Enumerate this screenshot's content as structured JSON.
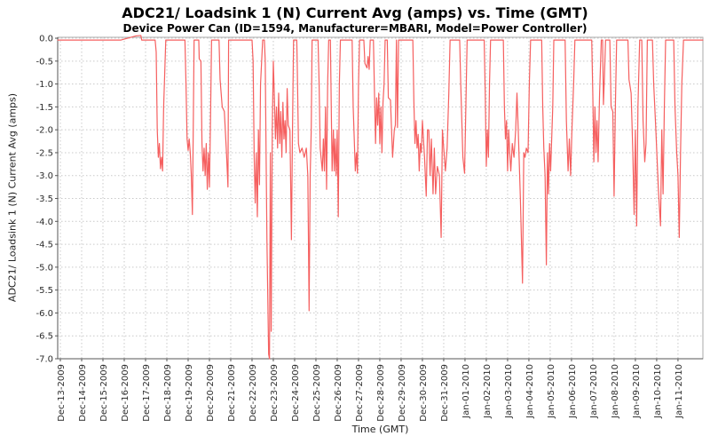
{
  "header": {
    "title": "ADC21/ Loadsink 1 (N) Current Avg (amps) vs. Time (GMT)",
    "subtitle": "Device Power Can (ID=1594, Manufacturer=MBARI, Model=Power Controller)"
  },
  "colors": {
    "series": "#f55f5f",
    "grid": "#c9c9c9",
    "plot_border": "#aaaaaa",
    "axis_line": "#555555",
    "tick_label": "#2b2b2b",
    "background": "#ffffff"
  },
  "chart_data": {
    "type": "line",
    "title": "ADC21/ Loadsink 1 (N) Current Avg (amps) vs. Time (GMT)",
    "subtitle": "Device Power Can (ID=1594, Manufacturer=MBARI, Model=Power Controller)",
    "xlabel": "Time (GMT)",
    "ylabel": "ADC21/ Loadsink 1 (N) Current Avg (amps)",
    "legend": "none",
    "grid": true,
    "grid_style": "dotted",
    "x_tick_labels": [
      "Dec-13-2009",
      "Dec-14-2009",
      "Dec-15-2009",
      "Dec-16-2009",
      "Dec-17-2009",
      "Dec-18-2009",
      "Dec-19-2009",
      "Dec-20-2009",
      "Dec-21-2009",
      "Dec-22-2009",
      "Dec-23-2009",
      "Dec-24-2009",
      "Dec-25-2009",
      "Dec-26-2009",
      "Dec-27-2009",
      "Dec-28-2009",
      "Dec-29-2009",
      "Dec-30-2009",
      "Dec-31-2009",
      "Jan-01-2010",
      "Jan-02-2010",
      "Jan-03-2010",
      "Jan-04-2010",
      "Jan-05-2010",
      "Jan-06-2010",
      "Jan-07-2010",
      "Jan-08-2010",
      "Jan-09-2010",
      "Jan-10-2010",
      "Jan-11-2010"
    ],
    "y_ticks": [
      0.0,
      -0.5,
      -1.0,
      -1.5,
      -2.0,
      -2.5,
      -3.0,
      -3.5,
      -4.0,
      -4.5,
      -5.0,
      -5.5,
      -6.0,
      -6.5,
      -7.0
    ],
    "ylim": [
      -7.0,
      0.02
    ],
    "x_range_days": [
      -0.125,
      30.17
    ],
    "x_unit": "days since Dec-13-2009 00:00 GMT",
    "series": [
      {
        "name": "ADC21/ Loadsink 1 (N) Current Avg",
        "color": "#f55f5f",
        "points": [
          [
            -0.12,
            -0.04
          ],
          [
            2.85,
            -0.04
          ],
          [
            3.0,
            -0.02
          ],
          [
            3.55,
            0.05
          ],
          [
            3.78,
            0.06
          ],
          [
            3.82,
            -0.04
          ],
          [
            4.45,
            -0.04
          ],
          [
            4.5,
            -0.3
          ],
          [
            4.55,
            -2.0
          ],
          [
            4.6,
            -2.6
          ],
          [
            4.65,
            -2.3
          ],
          [
            4.7,
            -2.85
          ],
          [
            4.75,
            -2.6
          ],
          [
            4.8,
            -2.9
          ],
          [
            4.85,
            -1.5
          ],
          [
            4.95,
            -0.04
          ],
          [
            5.85,
            -0.04
          ],
          [
            5.9,
            -1.0
          ],
          [
            5.95,
            -2.2
          ],
          [
            6.0,
            -2.45
          ],
          [
            6.05,
            -2.2
          ],
          [
            6.1,
            -2.5
          ],
          [
            6.15,
            -3.0
          ],
          [
            6.2,
            -3.85
          ],
          [
            6.24,
            -2.0
          ],
          [
            6.28,
            -0.04
          ],
          [
            6.5,
            -0.04
          ],
          [
            6.52,
            -0.45
          ],
          [
            6.6,
            -0.5
          ],
          [
            6.65,
            -2.3
          ],
          [
            6.7,
            -2.9
          ],
          [
            6.75,
            -2.4
          ],
          [
            6.8,
            -3.0
          ],
          [
            6.85,
            -2.3
          ],
          [
            6.9,
            -3.3
          ],
          [
            6.95,
            -2.5
          ],
          [
            7.0,
            -3.25
          ],
          [
            7.05,
            -1.8
          ],
          [
            7.1,
            -0.04
          ],
          [
            7.45,
            -0.04
          ],
          [
            7.5,
            -0.9
          ],
          [
            7.6,
            -1.5
          ],
          [
            7.7,
            -1.6
          ],
          [
            7.8,
            -2.5
          ],
          [
            7.87,
            -3.25
          ],
          [
            7.9,
            -0.04
          ],
          [
            9.0,
            -0.04
          ],
          [
            9.05,
            -0.5
          ],
          [
            9.1,
            -2.55
          ],
          [
            9.15,
            -3.6
          ],
          [
            9.2,
            -2.5
          ],
          [
            9.25,
            -3.9
          ],
          [
            9.3,
            -2.0
          ],
          [
            9.35,
            -3.2
          ],
          [
            9.4,
            -1.0
          ],
          [
            9.5,
            -0.04
          ],
          [
            9.58,
            -0.04
          ],
          [
            9.62,
            -0.5
          ],
          [
            9.66,
            -2.5
          ],
          [
            9.7,
            -4.4
          ],
          [
            9.78,
            -6.9
          ],
          [
            9.82,
            -7.0
          ],
          [
            9.86,
            -2.5
          ],
          [
            9.9,
            -6.4
          ],
          [
            9.95,
            -2.0
          ],
          [
            10.0,
            -0.5
          ],
          [
            10.05,
            -1.3
          ],
          [
            10.1,
            -2.2
          ],
          [
            10.15,
            -1.5
          ],
          [
            10.2,
            -2.4
          ],
          [
            10.25,
            -1.2
          ],
          [
            10.3,
            -2.3
          ],
          [
            10.35,
            -1.6
          ],
          [
            10.4,
            -2.6
          ],
          [
            10.45,
            -1.4
          ],
          [
            10.5,
            -2.2
          ],
          [
            10.55,
            -1.8
          ],
          [
            10.6,
            -2.5
          ],
          [
            10.65,
            -1.1
          ],
          [
            10.7,
            -1.9
          ],
          [
            10.78,
            -2.0
          ],
          [
            10.85,
            -4.4
          ],
          [
            10.9,
            -2.0
          ],
          [
            10.95,
            -0.04
          ],
          [
            11.1,
            -0.04
          ],
          [
            11.12,
            -0.5
          ],
          [
            11.18,
            -2.3
          ],
          [
            11.25,
            -2.5
          ],
          [
            11.35,
            -2.4
          ],
          [
            11.45,
            -2.6
          ],
          [
            11.55,
            -2.4
          ],
          [
            11.62,
            -3.0
          ],
          [
            11.68,
            -5.95
          ],
          [
            11.73,
            -3.0
          ],
          [
            11.78,
            -2.0
          ],
          [
            11.82,
            -0.04
          ],
          [
            12.1,
            -0.04
          ],
          [
            12.15,
            -1.0
          ],
          [
            12.2,
            -2.4
          ],
          [
            12.3,
            -2.9
          ],
          [
            12.35,
            -2.2
          ],
          [
            12.4,
            -2.9
          ],
          [
            12.45,
            -1.5
          ],
          [
            12.5,
            -3.3
          ],
          [
            12.55,
            -1.0
          ],
          [
            12.6,
            -0.04
          ],
          [
            12.68,
            -0.04
          ],
          [
            12.72,
            -1.5
          ],
          [
            12.76,
            -2.9
          ],
          [
            12.82,
            -2.0
          ],
          [
            12.86,
            -2.9
          ],
          [
            12.9,
            -2.2
          ],
          [
            12.95,
            -3.0
          ],
          [
            13.0,
            -2.0
          ],
          [
            13.05,
            -3.9
          ],
          [
            13.1,
            -1.0
          ],
          [
            13.15,
            -0.04
          ],
          [
            13.7,
            -0.04
          ],
          [
            13.75,
            -1.5
          ],
          [
            13.85,
            -2.9
          ],
          [
            13.9,
            -2.5
          ],
          [
            13.95,
            -2.95
          ],
          [
            14.0,
            -1.0
          ],
          [
            14.05,
            -0.04
          ],
          [
            14.25,
            -0.04
          ],
          [
            14.3,
            -0.55
          ],
          [
            14.4,
            -0.65
          ],
          [
            14.45,
            -0.4
          ],
          [
            14.5,
            -0.68
          ],
          [
            14.55,
            -0.04
          ],
          [
            14.7,
            -0.04
          ],
          [
            14.75,
            -1.2
          ],
          [
            14.8,
            -2.3
          ],
          [
            14.85,
            -1.3
          ],
          [
            14.9,
            -1.9
          ],
          [
            14.95,
            -1.2
          ],
          [
            15.0,
            -2.3
          ],
          [
            15.05,
            -1.5
          ],
          [
            15.1,
            -2.5
          ],
          [
            15.15,
            -1.4
          ],
          [
            15.2,
            -1.0
          ],
          [
            15.25,
            -0.04
          ],
          [
            15.35,
            -0.04
          ],
          [
            15.4,
            -1.3
          ],
          [
            15.5,
            -1.35
          ],
          [
            15.6,
            -2.6
          ],
          [
            15.68,
            -2.0
          ],
          [
            15.73,
            -1.9
          ],
          [
            15.78,
            -0.04
          ],
          [
            15.83,
            -1.95
          ],
          [
            15.88,
            -0.04
          ],
          [
            16.55,
            -0.04
          ],
          [
            16.6,
            -1.4
          ],
          [
            16.65,
            -2.3
          ],
          [
            16.7,
            -1.8
          ],
          [
            16.75,
            -2.4
          ],
          [
            16.8,
            -2.1
          ],
          [
            16.85,
            -2.9
          ],
          [
            16.9,
            -2.3
          ],
          [
            16.95,
            -2.5
          ],
          [
            17.0,
            -1.8
          ],
          [
            17.05,
            -2.2
          ],
          [
            17.1,
            -2.6
          ],
          [
            17.18,
            -3.45
          ],
          [
            17.24,
            -2.0
          ],
          [
            17.3,
            -2.0
          ],
          [
            17.36,
            -3.0
          ],
          [
            17.42,
            -2.2
          ],
          [
            17.5,
            -3.4
          ],
          [
            17.56,
            -2.4
          ],
          [
            17.62,
            -3.4
          ],
          [
            17.7,
            -2.8
          ],
          [
            17.8,
            -3.0
          ],
          [
            17.88,
            -4.35
          ],
          [
            17.94,
            -2.0
          ],
          [
            18.0,
            -2.4
          ],
          [
            18.08,
            -2.9
          ],
          [
            18.16,
            -2.4
          ],
          [
            18.24,
            -1.2
          ],
          [
            18.3,
            -0.04
          ],
          [
            18.75,
            -0.04
          ],
          [
            18.8,
            -1.0
          ],
          [
            18.9,
            -2.6
          ],
          [
            18.98,
            -2.95
          ],
          [
            19.04,
            -1.5
          ],
          [
            19.1,
            -0.04
          ],
          [
            19.9,
            -0.04
          ],
          [
            19.95,
            -1.2
          ],
          [
            20.0,
            -2.8
          ],
          [
            20.05,
            -2.0
          ],
          [
            20.1,
            -2.6
          ],
          [
            20.15,
            -1.0
          ],
          [
            20.2,
            -0.04
          ],
          [
            20.8,
            -0.04
          ],
          [
            20.85,
            -1.5
          ],
          [
            20.9,
            -2.2
          ],
          [
            20.95,
            -1.8
          ],
          [
            21.0,
            -2.9
          ],
          [
            21.05,
            -2.0
          ],
          [
            21.1,
            -2.5
          ],
          [
            21.15,
            -2.9
          ],
          [
            21.22,
            -2.3
          ],
          [
            21.3,
            -2.6
          ],
          [
            21.38,
            -2.0
          ],
          [
            21.44,
            -1.2
          ],
          [
            21.5,
            -2.0
          ],
          [
            21.6,
            -3.5
          ],
          [
            21.7,
            -5.35
          ],
          [
            21.76,
            -2.5
          ],
          [
            21.82,
            -2.6
          ],
          [
            21.88,
            -2.4
          ],
          [
            21.96,
            -2.5
          ],
          [
            22.02,
            -1.0
          ],
          [
            22.08,
            -0.04
          ],
          [
            22.6,
            -0.04
          ],
          [
            22.65,
            -1.5
          ],
          [
            22.7,
            -2.4
          ],
          [
            22.76,
            -3.0
          ],
          [
            22.82,
            -4.95
          ],
          [
            22.87,
            -2.5
          ],
          [
            22.92,
            -3.4
          ],
          [
            22.97,
            -2.3
          ],
          [
            23.02,
            -2.9
          ],
          [
            23.07,
            -2.2
          ],
          [
            23.12,
            -1.5
          ],
          [
            23.17,
            -0.04
          ],
          [
            23.7,
            -0.04
          ],
          [
            23.76,
            -1.8
          ],
          [
            23.84,
            -2.9
          ],
          [
            23.9,
            -2.2
          ],
          [
            23.96,
            -3.0
          ],
          [
            24.02,
            -2.0
          ],
          [
            24.1,
            -1.0
          ],
          [
            24.16,
            -0.04
          ],
          [
            24.95,
            -0.04
          ],
          [
            25.0,
            -1.2
          ],
          [
            25.05,
            -2.7
          ],
          [
            25.1,
            -1.5
          ],
          [
            25.15,
            -2.5
          ],
          [
            25.2,
            -1.8
          ],
          [
            25.25,
            -2.7
          ],
          [
            25.32,
            -1.2
          ],
          [
            25.4,
            -0.04
          ],
          [
            25.46,
            -0.04
          ],
          [
            25.5,
            -1.45
          ],
          [
            25.55,
            -0.8
          ],
          [
            25.6,
            -0.04
          ],
          [
            25.8,
            -0.04
          ],
          [
            25.86,
            -1.5
          ],
          [
            25.94,
            -1.6
          ],
          [
            26.0,
            -3.45
          ],
          [
            26.06,
            -1.5
          ],
          [
            26.12,
            -0.04
          ],
          [
            26.65,
            -0.04
          ],
          [
            26.7,
            -0.9
          ],
          [
            26.8,
            -1.2
          ],
          [
            26.88,
            -2.5
          ],
          [
            26.94,
            -3.85
          ],
          [
            27.0,
            -2.0
          ],
          [
            27.06,
            -4.1
          ],
          [
            27.12,
            -1.5
          ],
          [
            27.2,
            -0.04
          ],
          [
            27.3,
            -0.04
          ],
          [
            27.36,
            -1.8
          ],
          [
            27.44,
            -2.7
          ],
          [
            27.5,
            -2.3
          ],
          [
            27.56,
            -0.04
          ],
          [
            27.8,
            -0.04
          ],
          [
            27.86,
            -1.0
          ],
          [
            27.96,
            -2.0
          ],
          [
            28.08,
            -3.3
          ],
          [
            28.18,
            -4.1
          ],
          [
            28.24,
            -2.0
          ],
          [
            28.3,
            -3.4
          ],
          [
            28.36,
            -1.5
          ],
          [
            28.42,
            -0.04
          ],
          [
            28.8,
            -0.04
          ],
          [
            28.86,
            -1.5
          ],
          [
            28.94,
            -2.5
          ],
          [
            29.0,
            -3.0
          ],
          [
            29.06,
            -4.35
          ],
          [
            29.12,
            -2.5
          ],
          [
            29.18,
            -1.0
          ],
          [
            29.26,
            -0.04
          ],
          [
            30.17,
            -0.04
          ]
        ]
      }
    ]
  }
}
